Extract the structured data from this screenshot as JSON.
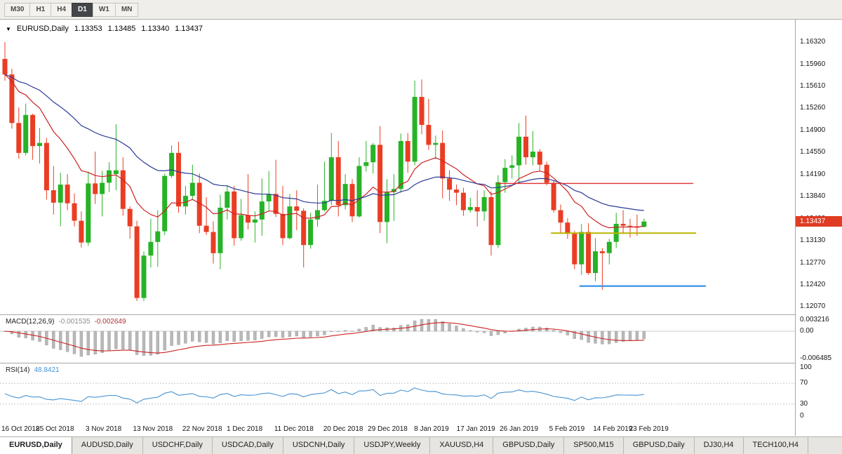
{
  "toolbar": {
    "timeframes": [
      {
        "label": "M30",
        "active": false
      },
      {
        "label": "H1",
        "active": false
      },
      {
        "label": "H4",
        "active": false
      },
      {
        "label": "D1",
        "active": true
      },
      {
        "label": "W1",
        "active": false
      },
      {
        "label": "MN",
        "active": false
      }
    ]
  },
  "chart": {
    "symbol_title": "EURUSD,Daily",
    "ohlc": {
      "open": "1.13353",
      "high": "1.13485",
      "low": "1.13340",
      "close": "1.13437"
    },
    "price_tag": "1.13437"
  },
  "macd_panel": {
    "label": "MACD(12,26,9)",
    "main_value": "-0.001535",
    "signal_value": "-0.002649",
    "axis_labels": {
      "max": "0.003216",
      "zero": "0.00",
      "min": "-0.006485"
    }
  },
  "rsi_panel": {
    "label": "RSI(14)",
    "value": "48.8421",
    "axis_labels": [
      "100",
      "70",
      "30",
      "0"
    ]
  },
  "tabs": [
    "EURUSD,Daily",
    "AUDUSD,Daily",
    "USDCHF,Daily",
    "USDCAD,Daily",
    "USDCNH,Daily",
    "USDJPY,Weekly",
    "XAUUSD,H4",
    "GBPUSD,Daily",
    "SP500,M15",
    "GBPUSD,Daily",
    "DJ30,H4",
    "TECH100,H4"
  ],
  "active_tab_index": 0,
  "colors": {
    "candle_up": "#26b326",
    "candle_down": "#ea3d23",
    "ma_fast": "#cc2222",
    "ma_slow": "#2b3a96",
    "macd_hist": "#b8b8b8",
    "macd_signal": "#cc2222",
    "rsi_line": "#4893d1",
    "price_tag_bg": "#e03c23",
    "hline_red": "#e03030",
    "hline_yellow": "#b8b400",
    "hline_blue": "#3f97e8"
  },
  "chart_data": {
    "type": "candlestick",
    "title": "EURUSD,Daily",
    "current_bar": {
      "open": 1.13353,
      "high": 1.13485,
      "low": 1.1334,
      "close": 1.13437
    },
    "ylim": [
      1.1195,
      1.1668
    ],
    "yticks": [
      {
        "price": 1.1632,
        "label": "1.16320"
      },
      {
        "price": 1.1596,
        "label": "1.15960"
      },
      {
        "price": 1.1561,
        "label": "1.15610"
      },
      {
        "price": 1.1526,
        "label": "1.15260"
      },
      {
        "price": 1.149,
        "label": "1.14900"
      },
      {
        "price": 1.1455,
        "label": "1.14550"
      },
      {
        "price": 1.1419,
        "label": "1.14190"
      },
      {
        "price": 1.1384,
        "label": "1.13840"
      },
      {
        "price": 1.1348,
        "label": "1.13480"
      },
      {
        "price": 1.1313,
        "label": "1.13130"
      },
      {
        "price": 1.1277,
        "label": "1.12770"
      },
      {
        "price": 1.1242,
        "label": "1.12420"
      },
      {
        "price": 1.1207,
        "label": "1.12070"
      }
    ],
    "xticks": [
      {
        "label": "16 Oct 2018",
        "i": 0.1
      },
      {
        "label": "25 Oct 2018",
        "i": 7.2
      },
      {
        "label": "3 Nov 2018",
        "i": 14.2
      },
      {
        "label": "13 Nov 2018",
        "i": 21.3
      },
      {
        "label": "22 Nov 2018",
        "i": 28.4
      },
      {
        "label": "1 Dec 2018",
        "i": 34.5
      },
      {
        "label": "11 Dec 2018",
        "i": 41.6
      },
      {
        "label": "20 Dec 2018",
        "i": 48.7
      },
      {
        "label": "29 Dec 2018",
        "i": 55.1
      },
      {
        "label": "8 Jan 2019",
        "i": 61.4
      },
      {
        "label": "17 Jan 2019",
        "i": 67.8
      },
      {
        "label": "26 Jan 2019",
        "i": 74.0
      },
      {
        "label": "5 Feb 2019",
        "i": 80.9
      },
      {
        "label": "14 Feb 2019",
        "i": 87.5
      },
      {
        "label": "23 Feb 2019",
        "i": 92.7
      }
    ],
    "candles": [
      [
        1.1605,
        1.1632,
        1.157,
        1.158
      ],
      [
        1.158,
        1.1589,
        1.1493,
        1.1502
      ],
      [
        1.1502,
        1.1527,
        1.1445,
        1.1454
      ],
      [
        1.1454,
        1.1533,
        1.145,
        1.1515
      ],
      [
        1.1515,
        1.1517,
        1.1443,
        1.1465
      ],
      [
        1.1465,
        1.1494,
        1.1437,
        1.147
      ],
      [
        1.147,
        1.1478,
        1.1379,
        1.1394
      ],
      [
        1.1394,
        1.1433,
        1.1355,
        1.1374
      ],
      [
        1.1374,
        1.1422,
        1.1336,
        1.1403
      ],
      [
        1.1403,
        1.142,
        1.1362,
        1.1373
      ],
      [
        1.1373,
        1.1389,
        1.1336,
        1.1345
      ],
      [
        1.1345,
        1.136,
        1.1302,
        1.131
      ],
      [
        1.131,
        1.1424,
        1.1305,
        1.1405
      ],
      [
        1.1405,
        1.1456,
        1.1372,
        1.1388
      ],
      [
        1.1388,
        1.1425,
        1.1352,
        1.1406
      ],
      [
        1.1406,
        1.1439,
        1.1391,
        1.1426
      ],
      [
        1.142,
        1.15,
        1.1394,
        1.1426
      ],
      [
        1.1426,
        1.1447,
        1.1353,
        1.1364
      ],
      [
        1.1364,
        1.1368,
        1.1316,
        1.1336
      ],
      [
        1.1336,
        1.1345,
        1.1216,
        1.1221
      ],
      [
        1.1221,
        1.1296,
        1.1216,
        1.1289
      ],
      [
        1.1289,
        1.1348,
        1.127,
        1.1311
      ],
      [
        1.1311,
        1.1362,
        1.1271,
        1.1328
      ],
      [
        1.1328,
        1.1421,
        1.1322,
        1.1417
      ],
      [
        1.1417,
        1.1466,
        1.1414,
        1.1454
      ],
      [
        1.1454,
        1.1472,
        1.1358,
        1.1368
      ],
      [
        1.1368,
        1.1401,
        1.1355,
        1.1385
      ],
      [
        1.1385,
        1.1435,
        1.1378,
        1.1406
      ],
      [
        1.1406,
        1.1421,
        1.1325,
        1.1337
      ],
      [
        1.1337,
        1.1383,
        1.1322,
        1.1327
      ],
      [
        1.1327,
        1.1344,
        1.1276,
        1.1293
      ],
      [
        1.1293,
        1.1387,
        1.1267,
        1.1366
      ],
      [
        1.1366,
        1.1402,
        1.1347,
        1.1392
      ],
      [
        1.1392,
        1.1401,
        1.1305,
        1.1317
      ],
      [
        1.1317,
        1.138,
        1.1313,
        1.1354
      ],
      [
        1.1354,
        1.142,
        1.1331,
        1.1342
      ],
      [
        1.1342,
        1.136,
        1.131,
        1.1347
      ],
      [
        1.1347,
        1.1413,
        1.1321,
        1.1376
      ],
      [
        1.1376,
        1.1425,
        1.136,
        1.1388
      ],
      [
        1.1388,
        1.1443,
        1.1351,
        1.1356
      ],
      [
        1.1356,
        1.1401,
        1.1306,
        1.1317
      ],
      [
        1.1317,
        1.1388,
        1.1315,
        1.1368
      ],
      [
        1.1368,
        1.1394,
        1.133,
        1.1361
      ],
      [
        1.1361,
        1.1365,
        1.127,
        1.1306
      ],
      [
        1.1306,
        1.1358,
        1.13,
        1.1347
      ],
      [
        1.1347,
        1.1403,
        1.1335,
        1.1362
      ],
      [
        1.1362,
        1.144,
        1.136,
        1.1377
      ],
      [
        1.1377,
        1.1486,
        1.137,
        1.1447
      ],
      [
        1.1447,
        1.1473,
        1.1352,
        1.137
      ],
      [
        1.137,
        1.142,
        1.1363,
        1.1404
      ],
      [
        1.1404,
        1.1412,
        1.1343,
        1.1352
      ],
      [
        1.1352,
        1.1447,
        1.135,
        1.1433
      ],
      [
        1.1433,
        1.1473,
        1.1424,
        1.1439
      ],
      [
        1.1439,
        1.147,
        1.1421,
        1.1467
      ],
      [
        1.1467,
        1.1497,
        1.1325,
        1.1343
      ],
      [
        1.1343,
        1.1412,
        1.1309,
        1.1391
      ],
      [
        1.1391,
        1.142,
        1.1345,
        1.1396
      ],
      [
        1.1396,
        1.1485,
        1.139,
        1.1473
      ],
      [
        1.1473,
        1.1486,
        1.1422,
        1.144
      ],
      [
        1.144,
        1.157,
        1.1434,
        1.1544
      ],
      [
        1.1544,
        1.1572,
        1.1484,
        1.1499
      ],
      [
        1.1499,
        1.1541,
        1.1459,
        1.1467
      ],
      [
        1.1467,
        1.1482,
        1.1444,
        1.147
      ],
      [
        1.147,
        1.149,
        1.1381,
        1.1413
      ],
      [
        1.1413,
        1.1426,
        1.1377,
        1.1395
      ],
      [
        1.1395,
        1.1403,
        1.137,
        1.139
      ],
      [
        1.139,
        1.1398,
        1.1353,
        1.1362
      ],
      [
        1.1362,
        1.1382,
        1.1358,
        1.1367
      ],
      [
        1.1367,
        1.1394,
        1.1336,
        1.136
      ],
      [
        1.136,
        1.1394,
        1.1345,
        1.1383
      ],
      [
        1.1383,
        1.1392,
        1.1289,
        1.1306
      ],
      [
        1.1306,
        1.1418,
        1.1301,
        1.1407
      ],
      [
        1.1407,
        1.1444,
        1.139,
        1.143
      ],
      [
        1.143,
        1.145,
        1.1413,
        1.1434
      ],
      [
        1.1434,
        1.1502,
        1.1406,
        1.148
      ],
      [
        1.148,
        1.1514,
        1.1435,
        1.1447
      ],
      [
        1.1447,
        1.1489,
        1.1434,
        1.1456
      ],
      [
        1.1456,
        1.146,
        1.1424,
        1.1435
      ],
      [
        1.1435,
        1.144,
        1.1402,
        1.1406
      ],
      [
        1.1406,
        1.141,
        1.1358,
        1.1362
      ],
      [
        1.1362,
        1.1371,
        1.1324,
        1.1342
      ],
      [
        1.1342,
        1.1349,
        1.1316,
        1.1324
      ],
      [
        1.1324,
        1.1329,
        1.1267,
        1.1275
      ],
      [
        1.1275,
        1.134,
        1.1258,
        1.1327
      ],
      [
        1.1327,
        1.1341,
        1.1258,
        1.1261
      ],
      [
        1.1261,
        1.1317,
        1.1248,
        1.1296
      ],
      [
        1.1296,
        1.1301,
        1.1234,
        1.1293
      ],
      [
        1.1293,
        1.1316,
        1.1275,
        1.1311
      ],
      [
        1.1311,
        1.1358,
        1.1301,
        1.134
      ],
      [
        1.134,
        1.1362,
        1.1324,
        1.1337
      ],
      [
        1.1337,
        1.1348,
        1.1318,
        1.1336
      ],
      [
        1.1336,
        1.1355,
        1.1321,
        1.1334
      ],
      [
        1.13353,
        1.13485,
        1.1334,
        1.13437
      ]
    ],
    "overlays": {
      "moving_averages": [
        {
          "method": "ema",
          "period": 13,
          "color_key": "ma_fast"
        },
        {
          "method": "ema",
          "period": 34,
          "color_key": "ma_slow"
        }
      ],
      "hlines": [
        {
          "price": 1.1405,
          "i_from": 70.8,
          "i_to": 99.1,
          "color_key": "hline_red",
          "width": 1.4
        },
        {
          "price": 1.1325,
          "i_from": 78.6,
          "i_to": 99.5,
          "color_key": "hline_yellow",
          "width": 2
        },
        {
          "price": 1.124,
          "i_from": 82.7,
          "i_to": 100.9,
          "color_key": "hline_blue",
          "width": 2.4
        }
      ]
    },
    "indicators": [
      {
        "name": "MACD",
        "params": [
          12,
          26,
          9
        ],
        "display_values": [
          -0.001535,
          -0.002649
        ],
        "range": [
          -0.006485,
          0.003216
        ]
      },
      {
        "name": "RSI",
        "params": [
          14
        ],
        "display_value": 48.8421,
        "range": [
          0,
          100
        ],
        "levels": [
          30,
          70
        ]
      }
    ]
  }
}
